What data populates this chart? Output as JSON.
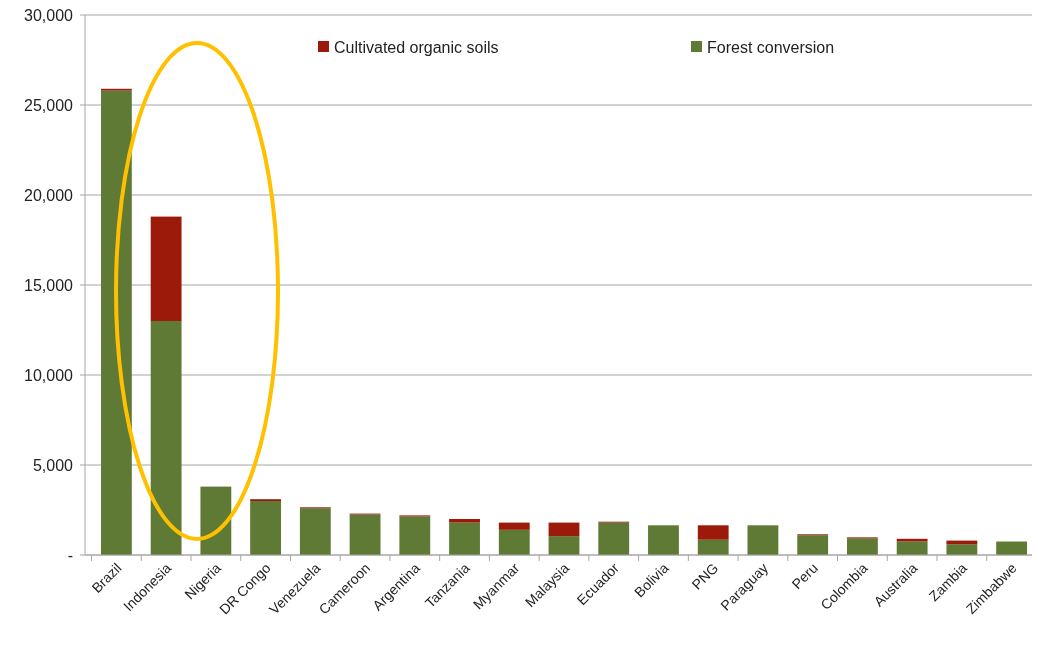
{
  "chart_data": {
    "type": "bar",
    "stacked": true,
    "categories": [
      "Brazil",
      "Indonesia",
      "Nigeria",
      "DR Congo",
      "Venezuela",
      "Cameroon",
      "Argentina",
      "Tanzania",
      "Myanmar",
      "Malaysia",
      "Ecuador",
      "Bolivia",
      "PNG",
      "Paraguay",
      "Peru",
      "Colombia",
      "Australia",
      "Zambia",
      "Zimbabwe"
    ],
    "series": [
      {
        "name": "Forest conversion",
        "color": "#5f7a35",
        "values": [
          25800,
          13000,
          3800,
          3000,
          2600,
          2250,
          2150,
          1800,
          1400,
          1050,
          1800,
          1650,
          850,
          1650,
          1100,
          930,
          750,
          600,
          750
        ]
      },
      {
        "name": "Cultivated organic soils",
        "color": "#9b1a0a",
        "values": [
          100,
          5800,
          0,
          100,
          50,
          50,
          50,
          200,
          400,
          750,
          50,
          0,
          800,
          0,
          50,
          50,
          150,
          200,
          0
        ]
      }
    ],
    "ylim": [
      0,
      30000
    ],
    "yticks": [
      {
        "value": 0,
        "label": "-"
      },
      {
        "value": 5000,
        "label": "5,000"
      },
      {
        "value": 10000,
        "label": "10,000"
      },
      {
        "value": 15000,
        "label": "15,000"
      },
      {
        "value": 20000,
        "label": "20,000"
      },
      {
        "value": 25000,
        "label": "25,000"
      },
      {
        "value": 30000,
        "label": "30,000"
      }
    ],
    "grid": "y",
    "legend": "top"
  }
}
